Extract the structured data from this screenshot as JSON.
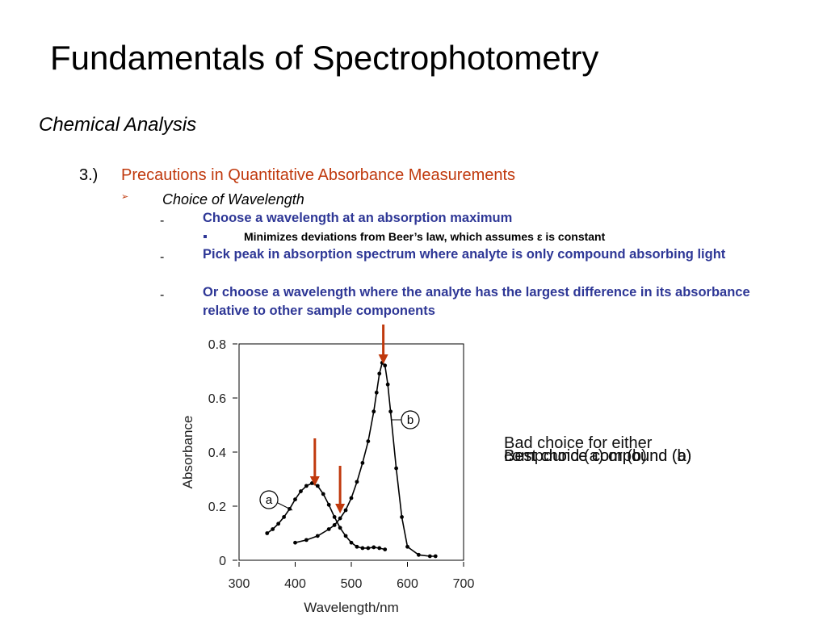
{
  "slide": {
    "title": "Fundamentals of Spectrophotometry",
    "subtitle": "Chemical Analysis",
    "section_number": "3.)",
    "section_title": "Precautions in Quantitative Absorbance Measurements",
    "choice_heading": "Choice of Wavelength",
    "dash": "-",
    "bullets": [
      "Choose a wavelength at an absorption maximum",
      "Pick peak in absorption spectrum where analyte is only compound absorbing light",
      "Or choose a wavelength where the analyte has the largest difference in its absorbance relative to other sample components"
    ],
    "sub_bullet": "Minimizes deviations from Beer’s law, which assumes ε is constant",
    "annotations": {
      "bad": "Bad choice for either compound (a) or (b)",
      "best_a": "Best choice compound (a)",
      "best_b": "Best choice compound (b)"
    }
  },
  "colors": {
    "section": "#c0390d",
    "bullet_text": "#2e3796",
    "arrow": "#c0390d"
  },
  "chart_data": {
    "type": "line",
    "xlabel": "Wavelength/nm",
    "ylabel": "Absorbance",
    "xlim": [
      300,
      700
    ],
    "ylim": [
      0,
      0.8
    ],
    "xticks": [
      300,
      400,
      500,
      600,
      700
    ],
    "yticks": [
      0,
      0.2,
      0.4,
      0.6,
      0.8
    ],
    "ytick_labels": [
      "0",
      "0.2",
      "0.4",
      "0.6",
      "0.8"
    ],
    "series": [
      {
        "name": "a",
        "x": [
          350,
          360,
          370,
          380,
          390,
          400,
          410,
          420,
          430,
          440,
          450,
          460,
          470,
          480,
          490,
          500,
          510,
          520,
          530,
          540,
          550,
          560
        ],
        "y": [
          0.1,
          0.115,
          0.135,
          0.16,
          0.19,
          0.225,
          0.255,
          0.275,
          0.285,
          0.275,
          0.245,
          0.205,
          0.16,
          0.12,
          0.09,
          0.065,
          0.05,
          0.045,
          0.045,
          0.048,
          0.045,
          0.04
        ]
      },
      {
        "name": "b",
        "x": [
          400,
          420,
          440,
          460,
          470,
          480,
          490,
          500,
          510,
          520,
          530,
          540,
          545,
          550,
          555,
          560,
          565,
          570,
          580,
          590,
          600,
          620,
          640,
          650
        ],
        "y": [
          0.065,
          0.075,
          0.09,
          0.115,
          0.13,
          0.155,
          0.185,
          0.23,
          0.29,
          0.36,
          0.44,
          0.55,
          0.62,
          0.69,
          0.73,
          0.72,
          0.65,
          0.55,
          0.34,
          0.16,
          0.05,
          0.02,
          0.015,
          0.015
        ]
      }
    ],
    "markers_at_nm": [
      435,
      480,
      557
    ]
  }
}
